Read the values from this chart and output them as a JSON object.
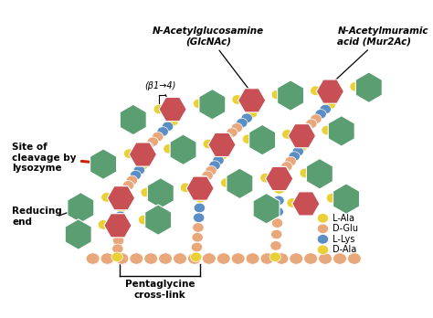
{
  "background_color": "#ffffff",
  "fig_width": 4.74,
  "fig_height": 3.48,
  "colors": {
    "green": "#5a9e72",
    "red": "#c85055",
    "yellow": "#e8d035",
    "blue": "#5b8ec4",
    "salmon": "#e8a87c",
    "arrow_red": "#cc2200",
    "black": "#000000"
  },
  "labels": {
    "glcnac": "N-Acetylglucosamine\n(GlcNAc)",
    "mur2ac": "N-Acetylmuramic\nacid (Mur2Ac)",
    "beta14": "(β1→4)",
    "site_cleavage": "Site of\ncleavage by\nlysozyme",
    "reducing_end": "Reducing\nend",
    "pentaglycine": "Pentaglycine\ncross-link",
    "l_ala": "L-Ala",
    "d_glu": "D-Glu",
    "l_lys": "L-Lys",
    "d_ala": "D-Ala"
  }
}
